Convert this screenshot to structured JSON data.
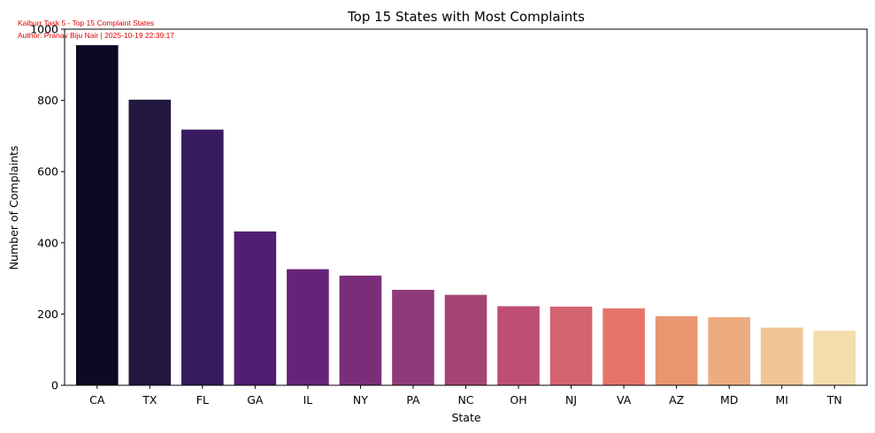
{
  "watermark": {
    "line1": "Kaiburr Task 5 - Top 15 Complaint States",
    "line2": "Author: Pranav Biju Nair | 2025-10-19 22:39:17",
    "color": "#e00000"
  },
  "chart_data": {
    "type": "bar",
    "title": "Top 15 States with Most Complaints",
    "xlabel": "State",
    "ylabel": "Number of Complaints",
    "categories": [
      "CA",
      "TX",
      "FL",
      "GA",
      "IL",
      "NY",
      "PA",
      "NC",
      "OH",
      "NJ",
      "VA",
      "AZ",
      "MD",
      "MI",
      "TN"
    ],
    "values": [
      955,
      802,
      718,
      432,
      326,
      308,
      268,
      254,
      222,
      221,
      216,
      194,
      191,
      162,
      153
    ],
    "colors": [
      "#0c0922",
      "#21173f",
      "#371b5e",
      "#521e73",
      "#662478",
      "#7a2e7a",
      "#8f3b7b",
      "#a54576",
      "#bf4f72",
      "#d46370",
      "#e6746b",
      "#e9956f",
      "#edac7f",
      "#f0c596",
      "#f3ddac"
    ],
    "ylim": [
      0,
      1000
    ],
    "yticks": [
      0,
      200,
      400,
      600,
      800,
      1000
    ],
    "grid": false,
    "legend": "none"
  }
}
